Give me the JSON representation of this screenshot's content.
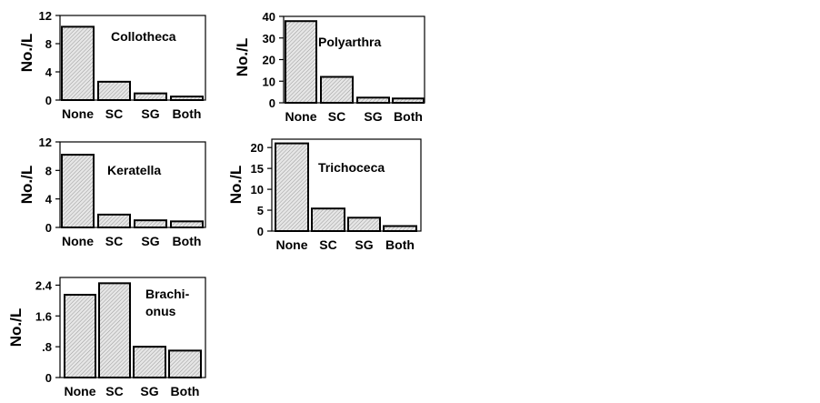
{
  "chart_data": [
    {
      "type": "bar",
      "title_lines": [
        "Collotheca"
      ],
      "ylabel": "No./L",
      "categories": [
        "None",
        "SC",
        "SG",
        "Both"
      ],
      "values": [
        10.4,
        2.6,
        0.95,
        0.5
      ],
      "ylim": [
        0,
        12
      ],
      "yticks": [
        0,
        4,
        8,
        12
      ],
      "ytick_labels": [
        "0",
        "4",
        "8",
        "12"
      ],
      "grid": false
    },
    {
      "type": "bar",
      "title_lines": [
        "Polyarthra"
      ],
      "ylabel": "No./L",
      "categories": [
        "None",
        "SC",
        "SG",
        "Both"
      ],
      "values": [
        37.8,
        12.0,
        2.4,
        2.0
      ],
      "ylim": [
        0,
        40
      ],
      "yticks": [
        0,
        10,
        20,
        30,
        40
      ],
      "ytick_labels": [
        "0",
        "10",
        "20",
        "30",
        "40"
      ],
      "grid": false
    },
    {
      "type": "bar",
      "title_lines": [
        "Keratella"
      ],
      "ylabel": "No./L",
      "categories": [
        "None",
        "SC",
        "SG",
        "Both"
      ],
      "values": [
        10.2,
        1.8,
        1.0,
        0.85
      ],
      "ylim": [
        0,
        12
      ],
      "yticks": [
        0,
        4,
        8,
        12
      ],
      "ytick_labels": [
        "0",
        "4",
        "8",
        "12"
      ],
      "grid": false
    },
    {
      "type": "bar",
      "title_lines": [
        "Trichoceca"
      ],
      "ylabel": "No./L",
      "categories": [
        "None",
        "SC",
        "SG",
        "Both"
      ],
      "values": [
        21.0,
        5.4,
        3.2,
        1.2
      ],
      "ylim": [
        0,
        22
      ],
      "yticks": [
        0,
        5,
        10,
        15,
        20
      ],
      "ytick_labels": [
        "0",
        "5",
        "10",
        "15",
        "20"
      ],
      "grid": false
    },
    {
      "type": "bar",
      "title_lines": [
        "Brachi-",
        "onus"
      ],
      "ylabel": "No./L",
      "categories": [
        "None",
        "SC",
        "SG",
        "Both"
      ],
      "values": [
        2.15,
        2.45,
        0.8,
        0.7
      ],
      "ylim": [
        0,
        2.6
      ],
      "yticks": [
        0,
        0.8,
        1.6,
        2.4
      ],
      "ytick_labels": [
        "0",
        ".8",
        "1.6",
        "2.4"
      ],
      "grid": false
    }
  ]
}
